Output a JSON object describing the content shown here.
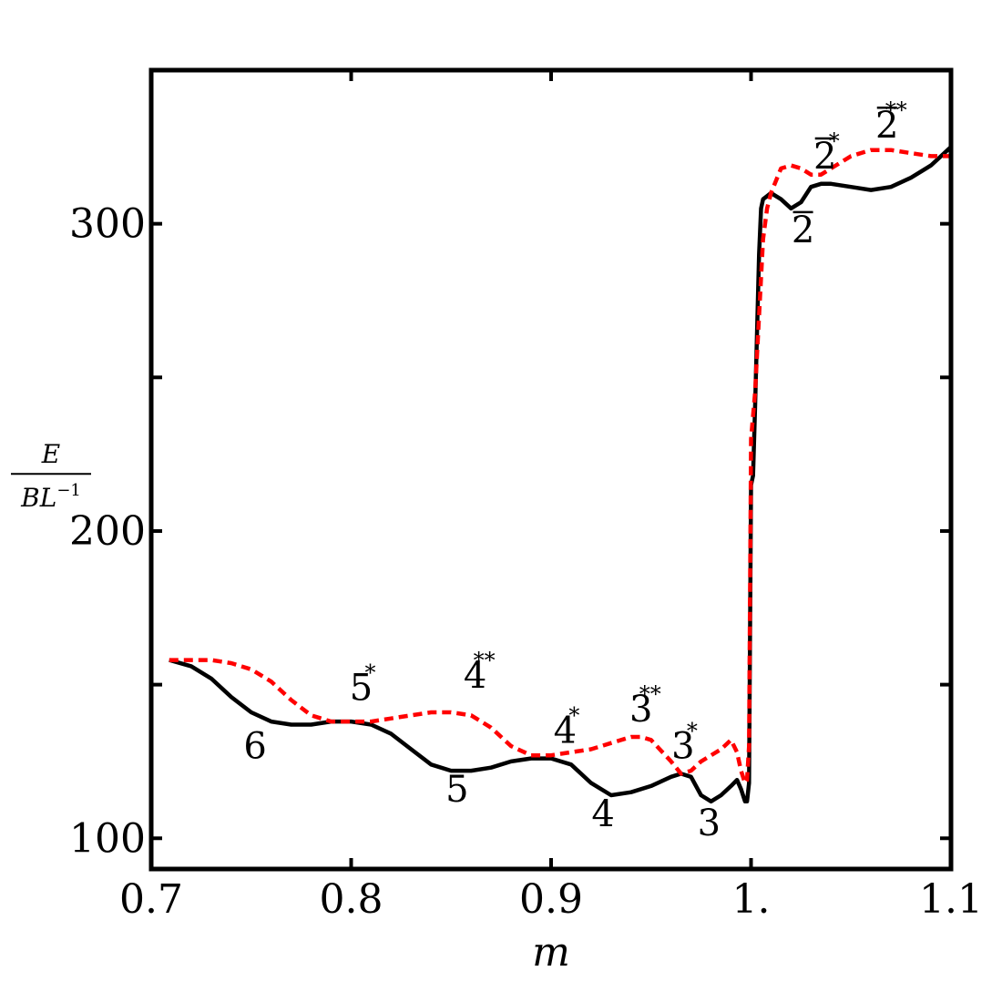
{
  "chart_data": {
    "type": "line",
    "xlabel": "m",
    "ylabel": {
      "numerator": "E",
      "denominator": "BL",
      "denominator_exponent": "−1"
    },
    "xlim": [
      0.7,
      1.1
    ],
    "ylim": [
      90,
      350
    ],
    "grid": false,
    "x_ticks": [
      {
        "value": 0.7,
        "label": "0.7"
      },
      {
        "value": 0.8,
        "label": "0.8"
      },
      {
        "value": 0.9,
        "label": "0.9"
      },
      {
        "value": 1.0,
        "label": "1."
      },
      {
        "value": 1.1,
        "label": "1.1"
      }
    ],
    "y_ticks": [
      {
        "value": 100,
        "label": "100"
      },
      {
        "value": 150,
        "label": ""
      },
      {
        "value": 200,
        "label": "200"
      },
      {
        "value": 250,
        "label": ""
      },
      {
        "value": 300,
        "label": "300"
      }
    ],
    "series": [
      {
        "style": "solid",
        "color": "#000000",
        "x": [
          0.709,
          0.72,
          0.73,
          0.74,
          0.75,
          0.76,
          0.77,
          0.78,
          0.79,
          0.8,
          0.81,
          0.82,
          0.83,
          0.84,
          0.85,
          0.86,
          0.87,
          0.88,
          0.89,
          0.9,
          0.91,
          0.92,
          0.93,
          0.94,
          0.95,
          0.96,
          0.965,
          0.97,
          0.975,
          0.98,
          0.985,
          0.99,
          0.993,
          0.995,
          0.997,
          0.998,
          0.999,
          1.0,
          1.001,
          1.002,
          1.003,
          1.004,
          1.005,
          1.006,
          1.008,
          1.01,
          1.015,
          1.02,
          1.025,
          1.03,
          1.035,
          1.04,
          1.05,
          1.06,
          1.07,
          1.08,
          1.09,
          1.1
        ],
        "y": [
          158,
          156,
          152,
          146,
          141,
          138,
          137,
          137,
          138,
          138,
          137,
          134,
          129,
          124,
          122,
          122,
          123,
          125,
          126,
          126,
          124,
          118,
          114,
          115,
          117,
          120,
          121,
          120,
          114,
          112,
          114,
          117,
          119,
          116,
          112,
          112,
          118,
          215,
          218,
          240,
          265,
          290,
          305,
          308,
          309,
          310,
          308,
          305,
          307,
          312,
          313,
          313,
          312,
          311,
          312,
          315,
          319,
          325
        ]
      },
      {
        "style": "dashed",
        "color": "#ff0000",
        "x": [
          0.709,
          0.72,
          0.73,
          0.74,
          0.75,
          0.76,
          0.77,
          0.78,
          0.79,
          0.8,
          0.81,
          0.82,
          0.83,
          0.84,
          0.85,
          0.86,
          0.87,
          0.88,
          0.89,
          0.9,
          0.91,
          0.92,
          0.93,
          0.94,
          0.945,
          0.95,
          0.96,
          0.965,
          0.97,
          0.975,
          0.98,
          0.985,
          0.99,
          0.993,
          0.995,
          0.997,
          0.998,
          0.999,
          1.0,
          1.002,
          1.004,
          1.006,
          1.008,
          1.01,
          1.015,
          1.02,
          1.025,
          1.03,
          1.035,
          1.04,
          1.05,
          1.06,
          1.07,
          1.08,
          1.09,
          1.1
        ],
        "y": [
          158,
          158,
          158,
          157,
          155,
          151,
          145,
          140,
          138,
          138,
          138,
          139,
          140,
          141,
          141,
          140,
          136,
          130,
          127,
          127,
          128,
          129,
          131,
          133,
          133,
          132,
          125,
          121,
          122,
          125,
          127,
          129,
          132,
          128,
          122,
          118,
          119,
          130,
          230,
          245,
          270,
          295,
          305,
          310,
          318,
          319,
          318,
          316,
          316,
          318,
          322,
          324,
          324,
          323,
          322,
          322
        ]
      }
    ],
    "annotations": [
      {
        "text": "6",
        "sup": "",
        "bar": false,
        "x": 0.752,
        "y": 126
      },
      {
        "text": "5",
        "sup": "*",
        "bar": false,
        "x": 0.805,
        "y": 145
      },
      {
        "text": "4",
        "sup": "**",
        "bar": false,
        "x": 0.862,
        "y": 149
      },
      {
        "text": "5",
        "sup": "",
        "bar": false,
        "x": 0.853,
        "y": 112
      },
      {
        "text": "4",
        "sup": "*",
        "bar": false,
        "x": 0.907,
        "y": 131
      },
      {
        "text": "3",
        "sup": "**",
        "bar": false,
        "x": 0.945,
        "y": 138
      },
      {
        "text": "4",
        "sup": "",
        "bar": false,
        "x": 0.926,
        "y": 104
      },
      {
        "text": "3",
        "sup": "*",
        "bar": false,
        "x": 0.966,
        "y": 126
      },
      {
        "text": "3",
        "sup": "",
        "bar": false,
        "x": 0.979,
        "y": 101
      },
      {
        "text": "2",
        "sup": "",
        "bar": true,
        "x": 1.026,
        "y": 294
      },
      {
        "text": "2",
        "sup": "*",
        "bar": true,
        "x": 1.037,
        "y": 318
      },
      {
        "text": "2",
        "sup": "**",
        "bar": true,
        "x": 1.068,
        "y": 328
      }
    ]
  }
}
